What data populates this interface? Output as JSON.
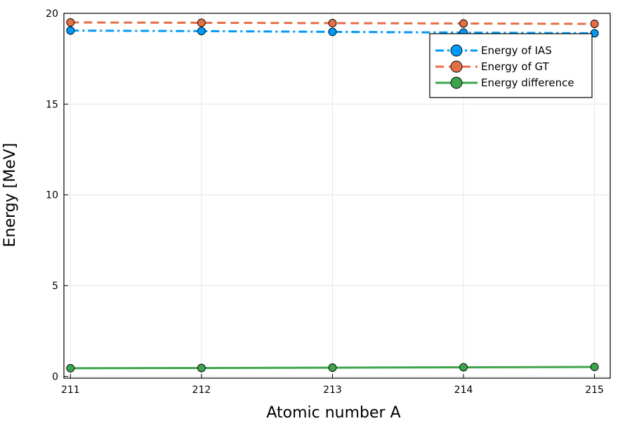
{
  "chart_data": {
    "type": "line",
    "title": "",
    "xlabel": "Atomic number A",
    "ylabel": "Energy [MeV]",
    "x": [
      211,
      212,
      213,
      214,
      215
    ],
    "x_ticks": [
      "211",
      "212",
      "213",
      "214",
      "215"
    ],
    "y_ticks": [
      "0",
      "5",
      "10",
      "15",
      "20"
    ],
    "xlim": [
      210.95,
      215.12
    ],
    "ylim": [
      -0.1,
      20
    ],
    "grid": true,
    "legend_position": "top-right",
    "series": [
      {
        "name": "Energy of IAS",
        "values": [
          19.05,
          19.02,
          18.98,
          18.94,
          18.9
        ],
        "color": "#009af9",
        "dash": "dash-dot",
        "marker": "circle"
      },
      {
        "name": "Energy of GT",
        "values": [
          19.5,
          19.48,
          19.46,
          19.44,
          19.42
        ],
        "color": "#e26f46",
        "dash": "dashed",
        "marker": "circle"
      },
      {
        "name": "Energy difference",
        "values": [
          0.45,
          0.46,
          0.48,
          0.5,
          0.52
        ],
        "color": "#3da44d",
        "dash": "solid",
        "marker": "circle"
      }
    ]
  }
}
